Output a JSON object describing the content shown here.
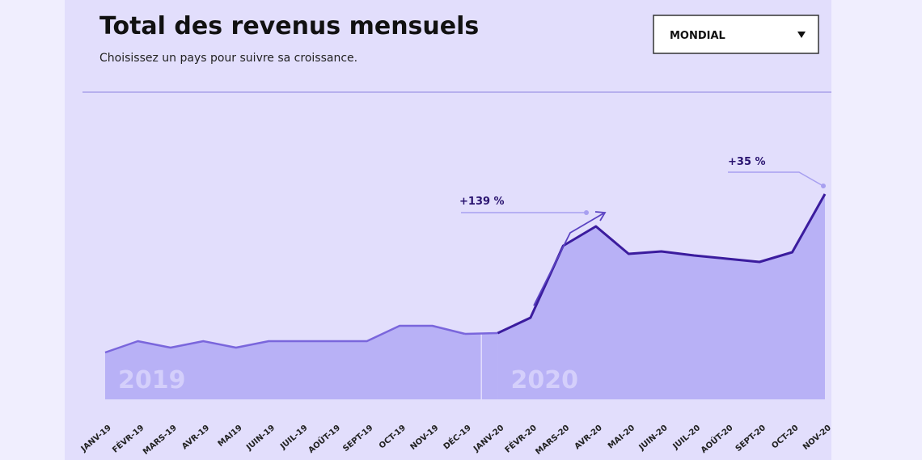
{
  "controls": {
    "dropdown": "MONDIAL"
  },
  "chart_data": {
    "type": "area",
    "title": "Total des revenus mensuels",
    "subtitle": "Choisissez un pays pour suivre sa croissance.",
    "categories": [
      "JANV-19",
      "FÉVR-19",
      "MARS-19",
      "AVR-19",
      "MAI19",
      "JUIN-19",
      "JUIL-19",
      "AOÛT-19",
      "SEPT-19",
      "OCT-19",
      "NOV-19",
      "DÉC-19",
      "JANV-20",
      "FÉVR-20",
      "MARS-20",
      "AVR-20",
      "MAI-20",
      "JUIN-20",
      "JUIL-20",
      "AOÛT-20",
      "SEPT-20",
      "OCT-20",
      "NOV-20"
    ],
    "series": [
      {
        "name": "2019",
        "color": "#7a66dc",
        "values": [
          58,
          72,
          64,
          72,
          64,
          72,
          72,
          72,
          72,
          91,
          91,
          81,
          null,
          null,
          null,
          null,
          null,
          null,
          null,
          null,
          null,
          null,
          null
        ]
      },
      {
        "name": "2020",
        "color": "#3b1c9e",
        "values": [
          null,
          null,
          null,
          null,
          null,
          null,
          null,
          null,
          null,
          null,
          null,
          null,
          82,
          101,
          190,
          214,
          180,
          183,
          178,
          174,
          170,
          182,
          254
        ]
      }
    ],
    "area_color": "#b8b1f6",
    "ylim": [
      0,
      270
    ],
    "annotations": [
      "+139 %",
      "+35 %"
    ]
  }
}
